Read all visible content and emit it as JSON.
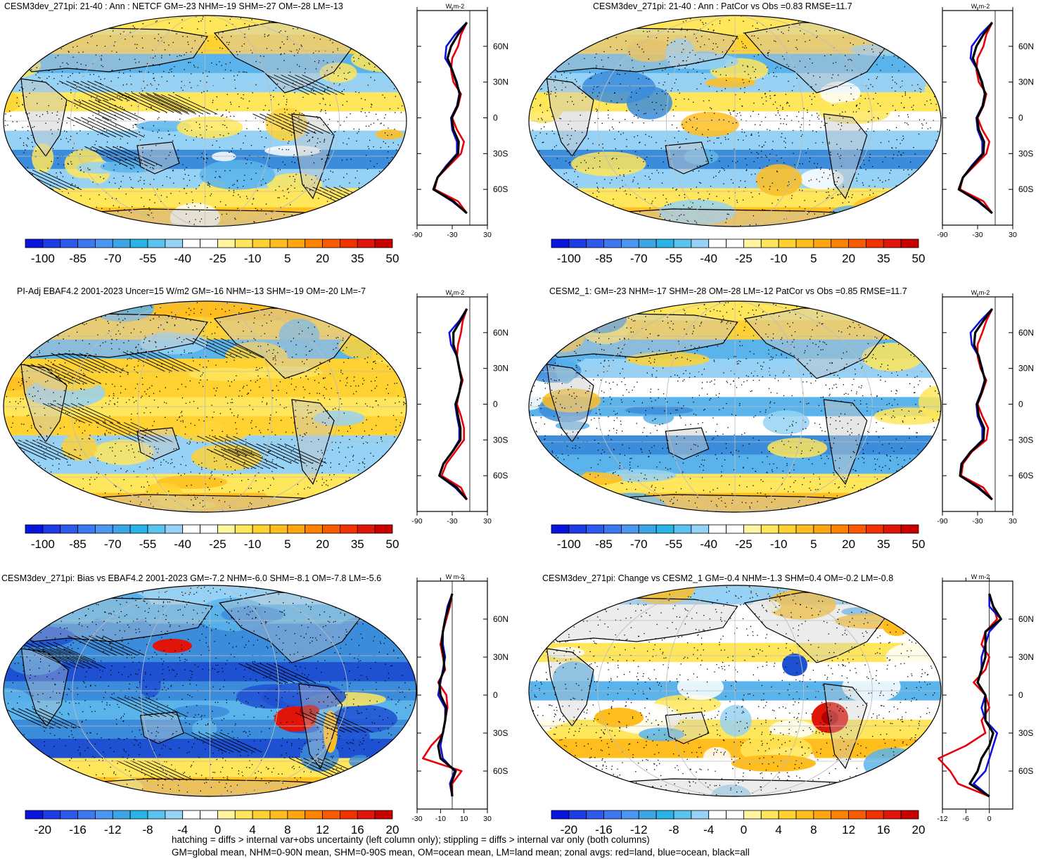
{
  "colors": {
    "land": "#c8c8c8",
    "coastline": "#000000",
    "zonal_land": "#e8000b",
    "zonal_ocean": "#1010e0",
    "zonal_all": "#000000",
    "palette": [
      "#0a14dc",
      "#1e3ce6",
      "#2d5aeb",
      "#3c78f0",
      "#4b96f0",
      "#3ca5e6",
      "#28b4e6",
      "#5ac3f0",
      "#96d2f5",
      "#ffffff",
      "#ffffff",
      "#fff5a0",
      "#ffe65a",
      "#ffd232",
      "#ffbe1e",
      "#ffa50f",
      "#ff8200",
      "#fa5a00",
      "#f03200",
      "#e1140a",
      "#c80000"
    ]
  },
  "unit_label": "W m-2",
  "lat_ticks": [
    "60N",
    "30N",
    "0",
    "30S",
    "60S"
  ],
  "panels": [
    {
      "title": "CESM3dev_271pi: 21-40 : Ann : NETCF GM=-23 NHM=-19 SHM=-27 OM=-28 LM=-13",
      "colorbar_labels": [
        "-100",
        "-85",
        "-70",
        "-55",
        "-40",
        "-25",
        "-10",
        "5",
        "20",
        "35",
        "50"
      ],
      "zonal_ticks": [
        "-90",
        "-30",
        "30"
      ],
      "hatching": true
    },
    {
      "title": "CESM3dev_271pi: 21-40 : Ann : PatCor vs Obs =0.83 RMSE=11.7",
      "colorbar_labels": [
        "-100",
        "-85",
        "-70",
        "-55",
        "-40",
        "-25",
        "-10",
        "5",
        "20",
        "35",
        "50"
      ],
      "zonal_ticks": [
        "-90",
        "-30",
        "30"
      ],
      "hatching": false
    },
    {
      "title": "PI-Adj EBAF4.2 2001-2023 Uncer=15 W/m2 GM=-16 NHM=-13 SHM=-19 OM=-20 LM=-7",
      "colorbar_labels": [
        "-100",
        "-85",
        "-70",
        "-55",
        "-40",
        "-25",
        "-10",
        "5",
        "20",
        "35",
        "50"
      ],
      "zonal_ticks": [
        "-90",
        "-30",
        "30"
      ],
      "hatching": true
    },
    {
      "title": "CESM2_1: GM=-23 NHM=-17 SHM=-28 OM=-28 LM=-12 PatCor vs Obs =0.85 RMSE=11.7",
      "colorbar_labels": [
        "-100",
        "-85",
        "-70",
        "-55",
        "-40",
        "-25",
        "-10",
        "5",
        "20",
        "35",
        "50"
      ],
      "zonal_ticks": [
        "-90",
        "-30",
        "30"
      ],
      "hatching": false
    },
    {
      "title": "CESM3dev_271pi: Bias vs EBAF4.2 2001-2023 GM=-7.2 NHM=-6.0 SHM=-8.1 OM=-7.8 LM=-5.6",
      "colorbar_labels": [
        "-20",
        "-16",
        "-12",
        "-8",
        "-4",
        "0",
        "4",
        "8",
        "12",
        "16",
        "20"
      ],
      "zonal_ticks": [
        "-30",
        "-10",
        "10",
        "30"
      ],
      "hatching": true
    },
    {
      "title": "CESM3dev_271pi: Change vs CESM2_1 GM=-0.4 NHM=-1.3 SHM=0.4 OM=-0.2 LM=-0.8",
      "colorbar_labels": [
        "-20",
        "-16",
        "-12",
        "-8",
        "-4",
        "0",
        "4",
        "8",
        "12",
        "16",
        "20"
      ],
      "zonal_ticks": [
        "-12",
        "-6",
        "0"
      ],
      "hatching": false
    }
  ],
  "footer": {
    "line1": "hatching = diffs > internal var+obs uncertainty (left column only); stippling = diffs > internal var only (both columns)",
    "line2": "GM=global mean, NHM=0-90N mean, SHM=0-90S mean, OM=ocean mean, LM=land mean; zonal avgs: red=land, blue=ocean, black=all"
  },
  "chart_data": [
    {
      "type": "heatmap",
      "title": "CESM3dev_271pi: 21-40 : Ann : NETCF GM=-23 NHM=-19 SHM=-27 OM=-28 LM=-13",
      "colorbar": [
        -100,
        -85,
        -70,
        -55,
        -40,
        -25,
        -10,
        5,
        20,
        35,
        50
      ],
      "zonal_mean": {
        "xticks": [
          -90,
          -30,
          30
        ],
        "yticks": [
          "60N",
          "30N",
          "0",
          "30S",
          "60S"
        ],
        "lat": [
          80,
          70,
          60,
          50,
          40,
          30,
          20,
          10,
          0,
          -10,
          -20,
          -30,
          -40,
          -50,
          -60,
          -70,
          -80
        ],
        "series": [
          {
            "name": "land",
            "values": [
              -5,
              -15,
              -20,
              -30,
              -32,
              -28,
              -15,
              -20,
              -30,
              -22,
              -10,
              -15,
              -35,
              -55,
              -60,
              -20,
              -5
            ]
          },
          {
            "name": "ocean",
            "values": [
              -5,
              -25,
              -40,
              -42,
              -30,
              -22,
              -18,
              -22,
              -32,
              -30,
              -22,
              -22,
              -40,
              -55,
              -62,
              -30,
              -5
            ]
          },
          {
            "name": "all",
            "values": [
              -5,
              -20,
              -32,
              -38,
              -30,
              -23,
              -17,
              -21,
              -31,
              -28,
              -19,
              -20,
              -38,
              -55,
              -62,
              -28,
              -5
            ]
          }
        ]
      }
    },
    {
      "type": "heatmap",
      "title": "CESM3dev_271pi: 21-40 : Ann : PatCor vs Obs =0.83 RMSE=11.7",
      "colorbar": [
        -100,
        -85,
        -70,
        -55,
        -40,
        -25,
        -10,
        5,
        20,
        35,
        50
      ],
      "zonal_mean": {
        "xticks": [
          -90,
          -30,
          30
        ],
        "yticks": [
          "60N",
          "30N",
          "0",
          "30S",
          "60S"
        ],
        "lat": [
          80,
          70,
          60,
          50,
          40,
          30,
          20,
          10,
          0,
          -10,
          -20,
          -30,
          -40,
          -50,
          -60,
          -70,
          -80
        ],
        "series": [
          {
            "name": "land",
            "values": [
              -5,
              -15,
              -20,
              -30,
              -32,
              -28,
              -15,
              -20,
              -30,
              -22,
              -10,
              -15,
              -35,
              -55,
              -60,
              -20,
              -5
            ]
          },
          {
            "name": "ocean",
            "values": [
              -5,
              -25,
              -40,
              -42,
              -30,
              -22,
              -18,
              -22,
              -32,
              -30,
              -22,
              -22,
              -40,
              -55,
              -62,
              -30,
              -5
            ]
          },
          {
            "name": "all",
            "values": [
              -5,
              -20,
              -32,
              -38,
              -30,
              -23,
              -17,
              -21,
              -31,
              -28,
              -19,
              -20,
              -38,
              -55,
              -62,
              -28,
              -5
            ]
          }
        ]
      }
    },
    {
      "type": "heatmap",
      "title": "PI-Adj EBAF4.2 2001-2023 Uncer=15 W/m2 GM=-16 NHM=-13 SHM=-19 OM=-20 LM=-7",
      "colorbar": [
        -100,
        -85,
        -70,
        -55,
        -40,
        -25,
        -10,
        5,
        20,
        35,
        50
      ],
      "zonal_mean": {
        "xticks": [
          -90,
          -30,
          30
        ],
        "yticks": [
          "60N",
          "30N",
          "0",
          "30S",
          "60S"
        ],
        "lat": [
          80,
          70,
          60,
          50,
          40,
          30,
          20,
          10,
          0,
          -10,
          -20,
          -30,
          -40,
          -50,
          -60,
          -70,
          -80
        ],
        "series": [
          {
            "name": "land",
            "values": [
              -5,
              -12,
              -15,
              -20,
              -22,
              -18,
              -12,
              -18,
              -22,
              -15,
              -10,
              -10,
              -25,
              -40,
              -48,
              -15,
              -5
            ]
          },
          {
            "name": "ocean",
            "values": [
              -5,
              -18,
              -35,
              -32,
              -22,
              -18,
              -14,
              -18,
              -25,
              -22,
              -18,
              -18,
              -30,
              -45,
              -52,
              -25,
              -5
            ]
          },
          {
            "name": "all",
            "values": [
              -5,
              -16,
              -28,
              -28,
              -22,
              -18,
              -14,
              -18,
              -24,
              -20,
              -16,
              -16,
              -30,
              -45,
              -52,
              -22,
              -5
            ]
          }
        ]
      }
    },
    {
      "type": "heatmap",
      "title": "CESM2_1: GM=-23 NHM=-17 SHM=-28 OM=-28 LM=-12 PatCor vs Obs =0.85 RMSE=11.7",
      "colorbar": [
        -100,
        -85,
        -70,
        -55,
        -40,
        -25,
        -10,
        5,
        20,
        35,
        50
      ],
      "zonal_mean": {
        "xticks": [
          -90,
          -30,
          30
        ],
        "yticks": [
          "60N",
          "30N",
          "0",
          "30S",
          "60S"
        ],
        "lat": [
          80,
          70,
          60,
          50,
          40,
          30,
          20,
          10,
          0,
          -10,
          -20,
          -30,
          -40,
          -50,
          -60,
          -70,
          -80
        ],
        "series": [
          {
            "name": "land",
            "values": [
              -5,
              -15,
              -22,
              -30,
              -30,
              -25,
              -15,
              -22,
              -30,
              -22,
              -12,
              -15,
              -40,
              -55,
              -58,
              -20,
              -5
            ]
          },
          {
            "name": "ocean",
            "values": [
              -5,
              -25,
              -42,
              -40,
              -28,
              -22,
              -18,
              -24,
              -32,
              -30,
              -22,
              -22,
              -42,
              -58,
              -60,
              -30,
              -5
            ]
          },
          {
            "name": "all",
            "values": [
              -5,
              -20,
              -34,
              -36,
              -28,
              -23,
              -17,
              -23,
              -31,
              -28,
              -19,
              -20,
              -42,
              -57,
              -60,
              -28,
              -5
            ]
          }
        ]
      }
    },
    {
      "type": "heatmap",
      "title": "CESM3dev_271pi: Bias vs EBAF4.2 2001-2023 GM=-7.2 NHM=-6.0 SHM=-8.1 OM=-7.8 LM=-5.6",
      "colorbar": [
        -20,
        -16,
        -12,
        -8,
        -4,
        0,
        4,
        8,
        12,
        16,
        20
      ],
      "zonal_mean": {
        "xticks": [
          -30,
          -10,
          10,
          30
        ],
        "yticks": [
          "60N",
          "30N",
          "0",
          "30S",
          "60S"
        ],
        "lat": [
          80,
          70,
          60,
          50,
          40,
          30,
          20,
          10,
          0,
          -10,
          -20,
          -30,
          -40,
          -50,
          -60,
          -70,
          -80
        ],
        "series": [
          {
            "name": "land",
            "values": [
              0,
              -2,
              -5,
              -8,
              -10,
              -8,
              -6,
              -12,
              -5,
              -4,
              -6,
              -8,
              -18,
              -25,
              8,
              0,
              0
            ]
          },
          {
            "name": "ocean",
            "values": [
              0,
              -4,
              -6,
              -8,
              -8,
              -6,
              -8,
              -10,
              -12,
              -6,
              -6,
              -8,
              -10,
              -8,
              2,
              -2,
              0
            ]
          },
          {
            "name": "all",
            "values": [
              0,
              -3,
              -6,
              -8,
              -9,
              -7,
              -7,
              -11,
              -10,
              -5,
              -6,
              -8,
              -12,
              -10,
              3,
              -1,
              0
            ]
          }
        ]
      }
    },
    {
      "type": "heatmap",
      "title": "CESM3dev_271pi: Change vs CESM2_1 GM=-0.4 NHM=-1.3 SHM=0.4 OM=-0.2 LM=-0.8",
      "colorbar": [
        -20,
        -16,
        -12,
        -8,
        -4,
        0,
        4,
        8,
        12,
        16,
        20
      ],
      "zonal_mean": {
        "xticks": [
          -12,
          -6,
          0
        ],
        "yticks": [
          "60N",
          "30N",
          "0",
          "30S",
          "60S"
        ],
        "lat": [
          80,
          70,
          60,
          50,
          40,
          30,
          20,
          10,
          0,
          -10,
          -20,
          -30,
          -40,
          -50,
          -60,
          -70,
          -80
        ],
        "series": [
          {
            "name": "land",
            "values": [
              0,
              1,
              2,
              -1,
              -2,
              0,
              -1,
              -4,
              -1,
              0,
              -2,
              -1,
              -6,
              -13,
              -10,
              -8,
              0
            ]
          },
          {
            "name": "ocean",
            "values": [
              0,
              0,
              3,
              0,
              -1,
              -2,
              -2,
              -3,
              -1,
              -2,
              -1,
              2,
              1,
              0,
              -1,
              -4,
              0
            ]
          },
          {
            "name": "all",
            "values": [
              0,
              1,
              3,
              -1,
              -1,
              -1,
              -2,
              -3,
              -1,
              -1,
              -1,
              1,
              0,
              -2,
              -3,
              -5,
              0
            ]
          }
        ]
      }
    }
  ]
}
